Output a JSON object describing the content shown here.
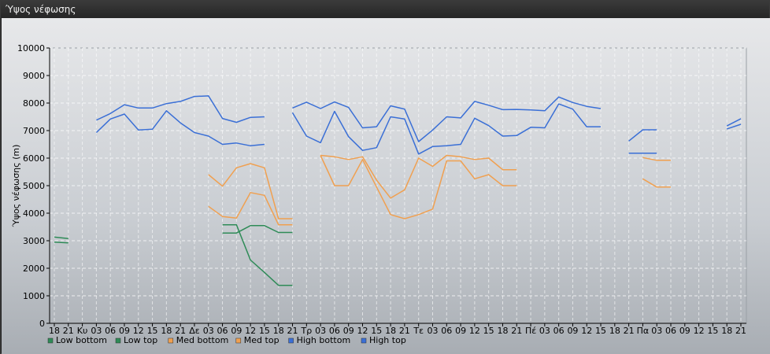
{
  "window": {
    "title": "Ύψος νέφωσης"
  },
  "chart_data": {
    "type": "line",
    "title": "",
    "xlabel": "",
    "ylabel": "Ύψος νέφωσης (m)",
    "ylim": [
      0,
      10000
    ],
    "yticks": [
      0,
      1000,
      2000,
      3000,
      4000,
      5000,
      6000,
      7000,
      8000,
      9000,
      10000
    ],
    "grid": true,
    "legend_position": "bottom-left",
    "categories": [
      "18",
      "21",
      "Κυ",
      "03",
      "06",
      "09",
      "12",
      "15",
      "18",
      "21",
      "Δε",
      "03",
      "06",
      "09",
      "12",
      "15",
      "18",
      "21",
      "Τρ",
      "03",
      "06",
      "09",
      "12",
      "15",
      "18",
      "21",
      "Τε",
      "03",
      "06",
      "09",
      "12",
      "15",
      "18",
      "21",
      "Πέ",
      "03",
      "06",
      "09",
      "12",
      "15",
      "18",
      "21",
      "Πα",
      "03",
      "06",
      "09",
      "12",
      "15",
      "18",
      "21"
    ],
    "series": [
      {
        "name": "Low bottom",
        "color": "#2e8b57",
        "values": [
          2950,
          2920,
          null,
          null,
          null,
          null,
          null,
          null,
          null,
          null,
          null,
          null,
          3280,
          3280,
          3550,
          3550,
          3300,
          3300,
          null,
          null,
          null,
          null,
          null,
          null,
          null,
          null,
          null,
          null,
          null,
          null,
          null,
          null,
          null,
          null,
          null,
          null,
          null,
          null,
          null,
          null,
          null,
          null,
          null,
          null,
          null,
          null,
          null,
          null,
          null,
          null
        ]
      },
      {
        "name": "Low top",
        "color": "#2e8b57",
        "values": [
          3130,
          3080,
          null,
          null,
          null,
          null,
          null,
          null,
          null,
          null,
          null,
          null,
          3580,
          3580,
          2300,
          1850,
          1380,
          1380,
          null,
          null,
          null,
          null,
          null,
          null,
          null,
          null,
          null,
          null,
          null,
          null,
          null,
          null,
          null,
          null,
          null,
          null,
          null,
          null,
          null,
          null,
          null,
          null,
          null,
          null,
          null,
          null,
          null,
          null,
          null,
          null
        ]
      },
      {
        "name": "Med bottom",
        "color": "#f0a050",
        "values": [
          null,
          null,
          null,
          null,
          null,
          null,
          null,
          null,
          null,
          null,
          null,
          4250,
          3880,
          3820,
          4750,
          4650,
          3580,
          3580,
          null,
          6100,
          5000,
          5000,
          5950,
          4950,
          3950,
          3800,
          3950,
          4150,
          5900,
          5900,
          5250,
          5400,
          5000,
          5000,
          null,
          null,
          null,
          null,
          null,
          null,
          null,
          null,
          5250,
          4950,
          4950,
          null,
          null,
          null,
          null,
          null
        ]
      },
      {
        "name": "Med top",
        "color": "#f0a050",
        "values": [
          null,
          null,
          null,
          null,
          null,
          null,
          null,
          null,
          null,
          null,
          null,
          5400,
          4980,
          5650,
          5800,
          5650,
          3800,
          3800,
          null,
          6100,
          6050,
          5950,
          6050,
          5200,
          4550,
          4850,
          6000,
          5700,
          6100,
          6050,
          5950,
          6000,
          5580,
          5580,
          null,
          null,
          null,
          null,
          null,
          null,
          null,
          null,
          6020,
          5920,
          5920,
          null,
          null,
          null,
          null,
          null
        ]
      },
      {
        "name": "High bottom",
        "color": "#3a6fd6",
        "values": [
          null,
          null,
          null,
          6930,
          7420,
          7600,
          7020,
          7050,
          7720,
          7280,
          6930,
          6800,
          6500,
          6550,
          6450,
          6500,
          null,
          7650,
          6800,
          6560,
          7700,
          6780,
          6280,
          6380,
          7500,
          7420,
          6150,
          6420,
          6450,
          6500,
          7450,
          7180,
          6800,
          6820,
          7120,
          7100,
          7970,
          7780,
          7140,
          7140,
          null,
          6620,
          7030,
          7030,
          null,
          null,
          null,
          null,
          7060,
          7230
        ]
      },
      {
        "name": "High top",
        "color": "#3a6fd6",
        "values": [
          null,
          null,
          null,
          7380,
          7620,
          7940,
          7820,
          7820,
          7980,
          8060,
          8240,
          8260,
          7440,
          7300,
          7480,
          7500,
          null,
          7820,
          8030,
          7800,
          8040,
          7840,
          7100,
          7140,
          7900,
          7780,
          6600,
          7020,
          7500,
          7460,
          8060,
          7920,
          7760,
          7770,
          7750,
          7720,
          8220,
          8020,
          7880,
          7800,
          null,
          6180,
          6180,
          6180,
          null,
          null,
          null,
          null,
          7170,
          7430
        ]
      }
    ]
  }
}
